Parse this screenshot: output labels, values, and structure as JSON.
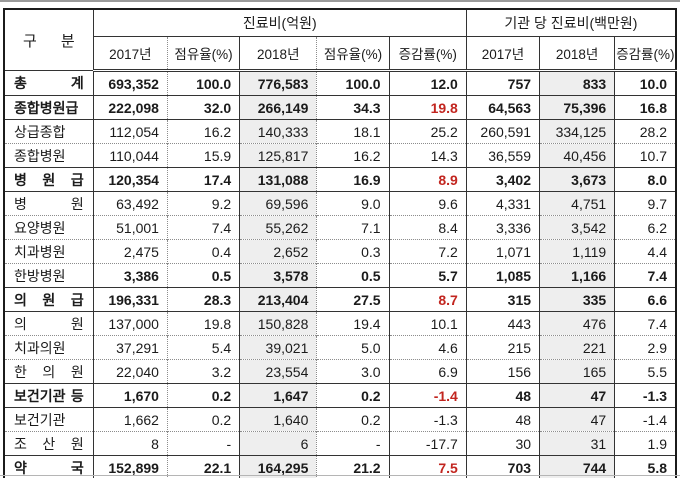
{
  "colors": {
    "accent_red": "#c2251f",
    "shade_2018_column": "#eeeeee",
    "border_dark": "#1b1b1b"
  },
  "table": {
    "corner_label": "구 분",
    "groups": [
      {
        "label": "진료비(억원)"
      },
      {
        "label": "기관 당 진료비(백만원)"
      }
    ],
    "sub_headers": [
      "2017년",
      "점유율(%)",
      "2018년",
      "점유율(%)",
      "증감률(%)",
      "2017년",
      "2018년",
      "증감률(%)"
    ],
    "rows": [
      {
        "label": "총 계",
        "cells": [
          "693,352",
          "100.0",
          "776,583",
          "100.0",
          "12.0",
          "757",
          "833",
          "10.0"
        ],
        "emphasis": true,
        "values_bold": false,
        "divider": "solid",
        "red": []
      },
      {
        "label": "종합병원급",
        "cells": [
          "222,098",
          "32.0",
          "266,149",
          "34.3",
          "19.8",
          "64,563",
          "75,396",
          "16.8"
        ],
        "emphasis": true,
        "values_bold": false,
        "divider": "solid",
        "red": [
          4
        ]
      },
      {
        "label": "상급종합",
        "cells": [
          "112,054",
          "16.2",
          "140,333",
          "18.1",
          "25.2",
          "260,591",
          "334,125",
          "28.2"
        ],
        "emphasis": false,
        "values_bold": false,
        "divider": "solid",
        "red": []
      },
      {
        "label": "종합병원",
        "cells": [
          "110,044",
          "15.9",
          "125,817",
          "16.2",
          "14.3",
          "36,559",
          "40,456",
          "10.7"
        ],
        "emphasis": false,
        "values_bold": false,
        "divider": "dotted",
        "red": []
      },
      {
        "label": "병 원 급",
        "cells": [
          "120,354",
          "17.4",
          "131,088",
          "16.9",
          "8.9",
          "3,402",
          "3,673",
          "8.0"
        ],
        "emphasis": true,
        "values_bold": false,
        "divider": "solid",
        "red": [
          4
        ]
      },
      {
        "label": "병 원",
        "cells": [
          "63,492",
          "9.2",
          "69,596",
          "9.0",
          "9.6",
          "4,331",
          "4,751",
          "9.7"
        ],
        "emphasis": false,
        "values_bold": false,
        "divider": "solid",
        "red": []
      },
      {
        "label": "요양병원",
        "cells": [
          "51,001",
          "7.4",
          "55,262",
          "7.1",
          "8.4",
          "3,336",
          "3,542",
          "6.2"
        ],
        "emphasis": false,
        "values_bold": false,
        "divider": "dotted",
        "red": []
      },
      {
        "label": "치과병원",
        "cells": [
          "2,475",
          "0.4",
          "2,652",
          "0.3",
          "7.2",
          "1,071",
          "1,119",
          "4.4"
        ],
        "emphasis": false,
        "values_bold": false,
        "divider": "dotted",
        "red": []
      },
      {
        "label": "한방병원",
        "cells": [
          "3,386",
          "0.5",
          "3,578",
          "0.5",
          "5.7",
          "1,085",
          "1,166",
          "7.4"
        ],
        "emphasis": false,
        "values_bold": true,
        "divider": "dotted",
        "red": []
      },
      {
        "label": "의 원 급",
        "cells": [
          "196,331",
          "28.3",
          "213,404",
          "27.5",
          "8.7",
          "315",
          "335",
          "6.6"
        ],
        "emphasis": true,
        "values_bold": false,
        "divider": "solid",
        "red": [
          4
        ]
      },
      {
        "label": "의 원",
        "cells": [
          "137,000",
          "19.8",
          "150,828",
          "19.4",
          "10.1",
          "443",
          "476",
          "7.4"
        ],
        "emphasis": false,
        "values_bold": false,
        "divider": "solid",
        "red": []
      },
      {
        "label": "치과의원",
        "cells": [
          "37,291",
          "5.4",
          "39,021",
          "5.0",
          "4.6",
          "215",
          "221",
          "2.9"
        ],
        "emphasis": false,
        "values_bold": false,
        "divider": "dotted",
        "red": []
      },
      {
        "label": "한 의 원",
        "cells": [
          "22,040",
          "3.2",
          "23,554",
          "3.0",
          "6.9",
          "156",
          "165",
          "5.5"
        ],
        "emphasis": false,
        "values_bold": false,
        "divider": "dotted",
        "red": []
      },
      {
        "label": "보건기관 등",
        "cells": [
          "1,670",
          "0.2",
          "1,647",
          "0.2",
          "-1.4",
          "48",
          "47",
          "-1.3"
        ],
        "emphasis": true,
        "values_bold": false,
        "divider": "solid",
        "red": [
          4
        ]
      },
      {
        "label": "보건기관",
        "cells": [
          "1,662",
          "0.2",
          "1,640",
          "0.2",
          "-1.3",
          "48",
          "47",
          "-1.4"
        ],
        "emphasis": false,
        "values_bold": false,
        "divider": "solid",
        "red": []
      },
      {
        "label": "조 산 원",
        "cells": [
          "8",
          "-",
          "6",
          "-",
          "-17.7",
          "30",
          "31",
          "1.9"
        ],
        "emphasis": false,
        "values_bold": false,
        "divider": "dotted",
        "red": []
      },
      {
        "label": "약 국",
        "cells": [
          "152,899",
          "22.1",
          "164,295",
          "21.2",
          "7.5",
          "703",
          "744",
          "5.8"
        ],
        "emphasis": true,
        "values_bold": false,
        "divider": "solid",
        "red": [
          4
        ]
      }
    ]
  }
}
